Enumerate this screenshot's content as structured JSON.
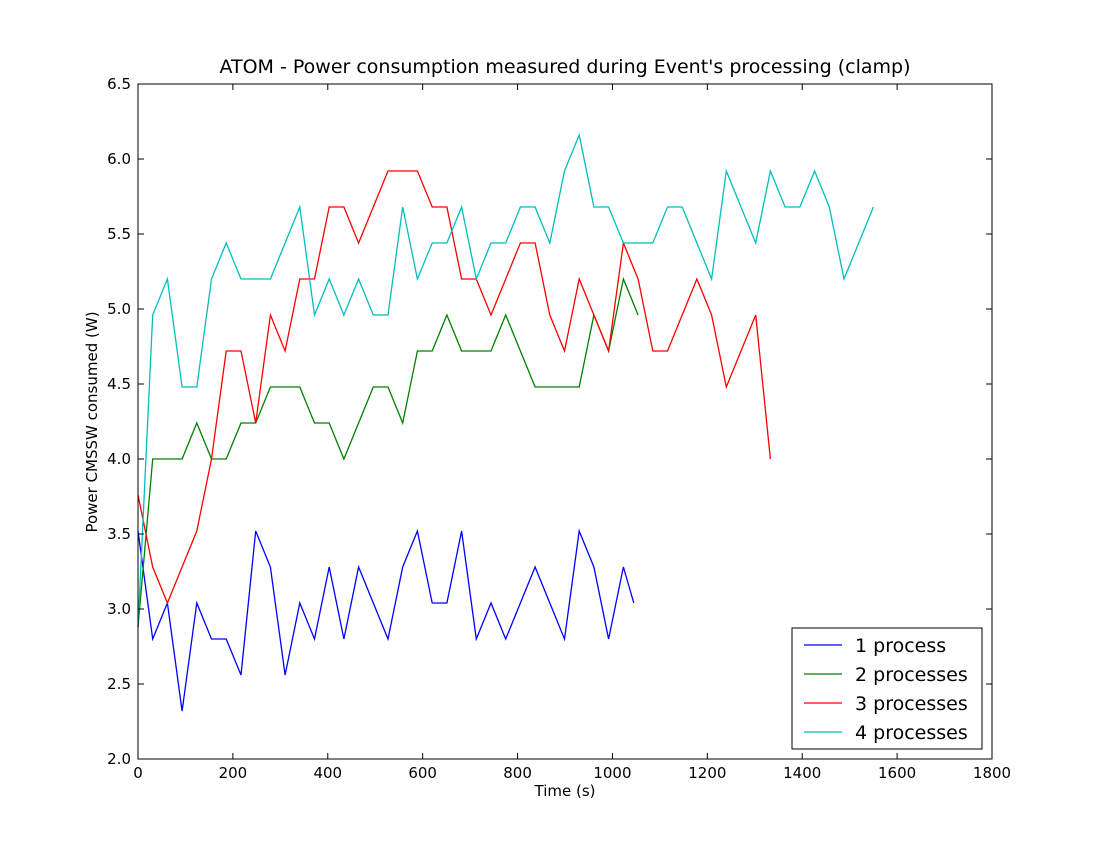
{
  "chart_data": {
    "type": "line",
    "title": "ATOM - Power consumption measured during Event's processing (clamp)",
    "xlabel": "Time (s)",
    "ylabel": "Power CMSSW consumed (W)",
    "xlim": [
      0,
      1800
    ],
    "ylim": [
      2.0,
      6.5
    ],
    "xticks": [
      "0",
      "200",
      "400",
      "600",
      "800",
      "1000",
      "1200",
      "1400",
      "1600",
      "1800"
    ],
    "yticks": [
      "2.0",
      "2.5",
      "3.0",
      "3.5",
      "4.0",
      "4.5",
      "5.0",
      "5.5",
      "6.0",
      "6.5"
    ],
    "grid": false,
    "legend_position": "lower-right",
    "series": [
      {
        "name": "1 process",
        "color": "#0000ff",
        "points": [
          [
            0,
            3.52
          ],
          [
            31,
            2.8
          ],
          [
            62,
            3.04
          ],
          [
            93,
            2.32
          ],
          [
            124,
            3.04
          ],
          [
            155,
            2.8
          ],
          [
            186,
            2.8
          ],
          [
            217,
            2.56
          ],
          [
            248,
            3.52
          ],
          [
            279,
            3.28
          ],
          [
            310,
            2.56
          ],
          [
            341,
            3.04
          ],
          [
            372,
            2.8
          ],
          [
            403,
            3.28
          ],
          [
            434,
            2.8
          ],
          [
            465,
            3.28
          ],
          [
            496,
            3.04
          ],
          [
            527,
            2.8
          ],
          [
            558,
            3.28
          ],
          [
            589,
            3.52
          ],
          [
            620,
            3.04
          ],
          [
            651,
            3.04
          ],
          [
            682,
            3.52
          ],
          [
            713,
            2.8
          ],
          [
            744,
            3.04
          ],
          [
            775,
            2.8
          ],
          [
            806,
            3.04
          ],
          [
            837,
            3.28
          ],
          [
            868,
            3.04
          ],
          [
            899,
            2.8
          ],
          [
            930,
            3.52
          ],
          [
            961,
            3.28
          ],
          [
            992,
            2.8
          ],
          [
            1023,
            3.28
          ],
          [
            1045,
            3.04
          ]
        ]
      },
      {
        "name": "2 processes",
        "color": "#008000",
        "points": [
          [
            0,
            2.88
          ],
          [
            31,
            4.0
          ],
          [
            62,
            4.0
          ],
          [
            93,
            4.0
          ],
          [
            124,
            4.24
          ],
          [
            155,
            4.0
          ],
          [
            186,
            4.0
          ],
          [
            217,
            4.24
          ],
          [
            248,
            4.24
          ],
          [
            279,
            4.48
          ],
          [
            310,
            4.48
          ],
          [
            341,
            4.48
          ],
          [
            372,
            4.24
          ],
          [
            403,
            4.24
          ],
          [
            434,
            4.0
          ],
          [
            465,
            4.24
          ],
          [
            496,
            4.48
          ],
          [
            527,
            4.48
          ],
          [
            558,
            4.24
          ],
          [
            589,
            4.72
          ],
          [
            620,
            4.72
          ],
          [
            651,
            4.96
          ],
          [
            682,
            4.72
          ],
          [
            713,
            4.72
          ],
          [
            744,
            4.72
          ],
          [
            775,
            4.96
          ],
          [
            806,
            4.72
          ],
          [
            837,
            4.48
          ],
          [
            868,
            4.48
          ],
          [
            899,
            4.48
          ],
          [
            930,
            4.48
          ],
          [
            961,
            4.96
          ],
          [
            992,
            4.72
          ],
          [
            1023,
            5.2
          ],
          [
            1054,
            4.96
          ]
        ]
      },
      {
        "name": "3 processes",
        "color": "#ff0000",
        "points": [
          [
            0,
            3.76
          ],
          [
            31,
            3.28
          ],
          [
            62,
            3.04
          ],
          [
            93,
            3.28
          ],
          [
            124,
            3.52
          ],
          [
            155,
            4.0
          ],
          [
            186,
            4.72
          ],
          [
            217,
            4.72
          ],
          [
            248,
            4.24
          ],
          [
            279,
            4.96
          ],
          [
            310,
            4.72
          ],
          [
            341,
            5.2
          ],
          [
            372,
            5.2
          ],
          [
            403,
            5.68
          ],
          [
            434,
            5.68
          ],
          [
            465,
            5.44
          ],
          [
            496,
            5.68
          ],
          [
            527,
            5.92
          ],
          [
            558,
            5.92
          ],
          [
            589,
            5.92
          ],
          [
            620,
            5.68
          ],
          [
            651,
            5.68
          ],
          [
            682,
            5.2
          ],
          [
            713,
            5.2
          ],
          [
            744,
            4.96
          ],
          [
            775,
            5.2
          ],
          [
            806,
            5.44
          ],
          [
            837,
            5.44
          ],
          [
            868,
            4.96
          ],
          [
            899,
            4.72
          ],
          [
            930,
            5.2
          ],
          [
            961,
            4.96
          ],
          [
            992,
            4.72
          ],
          [
            1023,
            5.44
          ],
          [
            1054,
            5.2
          ],
          [
            1085,
            4.72
          ],
          [
            1116,
            4.72
          ],
          [
            1147,
            4.96
          ],
          [
            1178,
            5.2
          ],
          [
            1209,
            4.96
          ],
          [
            1240,
            4.48
          ],
          [
            1271,
            4.72
          ],
          [
            1302,
            4.96
          ],
          [
            1333,
            4.0
          ]
        ]
      },
      {
        "name": "4 processes",
        "color": "#00bfbf",
        "points": [
          [
            0,
            2.88
          ],
          [
            31,
            4.96
          ],
          [
            62,
            5.2
          ],
          [
            93,
            4.48
          ],
          [
            124,
            4.48
          ],
          [
            155,
            5.2
          ],
          [
            186,
            5.44
          ],
          [
            217,
            5.2
          ],
          [
            248,
            5.2
          ],
          [
            279,
            5.2
          ],
          [
            310,
            5.44
          ],
          [
            341,
            5.68
          ],
          [
            372,
            4.96
          ],
          [
            403,
            5.2
          ],
          [
            434,
            4.96
          ],
          [
            465,
            5.2
          ],
          [
            496,
            4.96
          ],
          [
            527,
            4.96
          ],
          [
            558,
            5.68
          ],
          [
            589,
            5.2
          ],
          [
            620,
            5.44
          ],
          [
            651,
            5.44
          ],
          [
            682,
            5.68
          ],
          [
            713,
            5.2
          ],
          [
            744,
            5.44
          ],
          [
            775,
            5.44
          ],
          [
            806,
            5.68
          ],
          [
            837,
            5.68
          ],
          [
            868,
            5.44
          ],
          [
            899,
            5.92
          ],
          [
            930,
            6.16
          ],
          [
            961,
            5.68
          ],
          [
            992,
            5.68
          ],
          [
            1023,
            5.44
          ],
          [
            1054,
            5.44
          ],
          [
            1085,
            5.44
          ],
          [
            1116,
            5.68
          ],
          [
            1147,
            5.68
          ],
          [
            1178,
            5.44
          ],
          [
            1209,
            5.2
          ],
          [
            1240,
            5.92
          ],
          [
            1271,
            5.68
          ],
          [
            1302,
            5.44
          ],
          [
            1333,
            5.92
          ],
          [
            1364,
            5.68
          ],
          [
            1395,
            5.68
          ],
          [
            1426,
            5.92
          ],
          [
            1457,
            5.68
          ],
          [
            1488,
            5.2
          ],
          [
            1519,
            5.44
          ],
          [
            1550,
            5.68
          ]
        ]
      }
    ]
  }
}
